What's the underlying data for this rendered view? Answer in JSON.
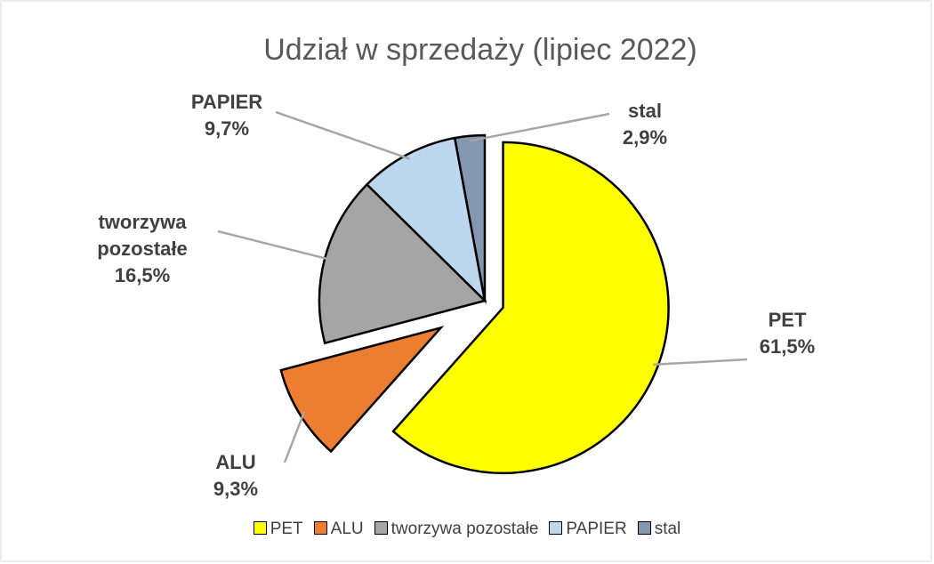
{
  "chart_data": {
    "type": "pie",
    "title": "Udział w sprzedaży (lipiec 2022)",
    "categories": [
      "PET",
      "ALU",
      "tworzywa pozostałe",
      "PAPIER",
      "stal"
    ],
    "values": [
      61.5,
      9.3,
      16.5,
      9.7,
      2.9
    ],
    "value_labels": [
      "61,5%",
      "9,3%",
      "16,5%",
      "9,7%",
      "2,9%"
    ],
    "colors": [
      "#ffff00",
      "#ed7d31",
      "#a5a5a5",
      "#bdd7ee",
      "#8497b0"
    ],
    "legend": "bottom"
  }
}
